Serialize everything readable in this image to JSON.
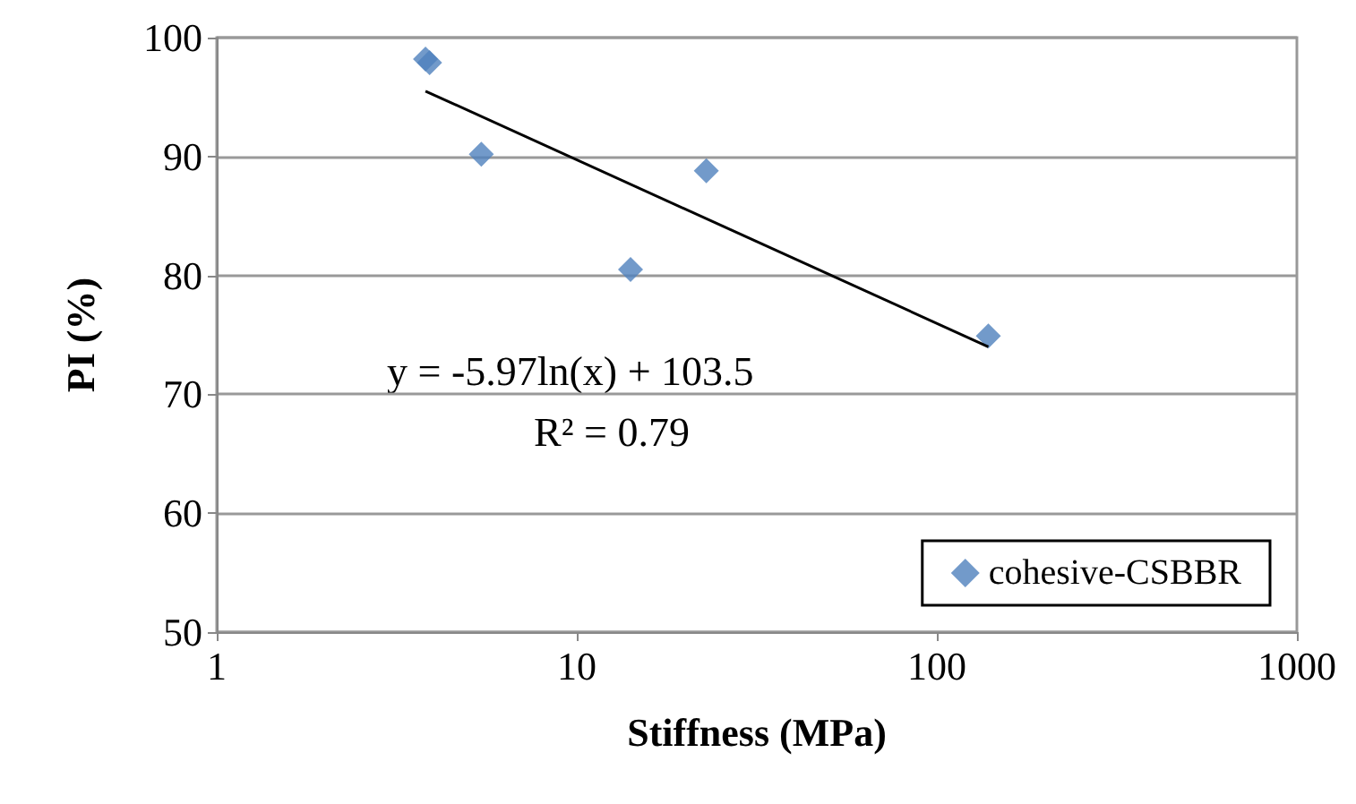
{
  "chart_data": {
    "type": "scatter",
    "xlabel": "Stiffness (MPa)",
    "ylabel": "PI (%)",
    "log": "x",
    "xlim": [
      1,
      1000
    ],
    "xticks": [
      1,
      10,
      100,
      1000
    ],
    "ylim": [
      50,
      100
    ],
    "yticks": [
      50,
      60,
      70,
      80,
      90,
      100
    ],
    "grid": "y",
    "legend": "bottom right",
    "series": [
      {
        "name": "cohesive-CSBBR",
        "color": "#4f81bd",
        "marker": "diamond",
        "x": [
          3.8,
          3.9,
          5.43,
          14.1,
          22.9,
          139
        ],
        "values": [
          98.2,
          97.9,
          90.2,
          80.5,
          88.8,
          74.9
        ]
      },
      {
        "type": "line",
        "color": "#000000",
        "marker": "none",
        "x": [
          3.8,
          139
        ],
        "values": [
          95.5,
          74.0
        ]
      }
    ],
    "annotations": [
      "y = -5.97ln(x) + 103.5",
      "R² = 0.79"
    ]
  }
}
